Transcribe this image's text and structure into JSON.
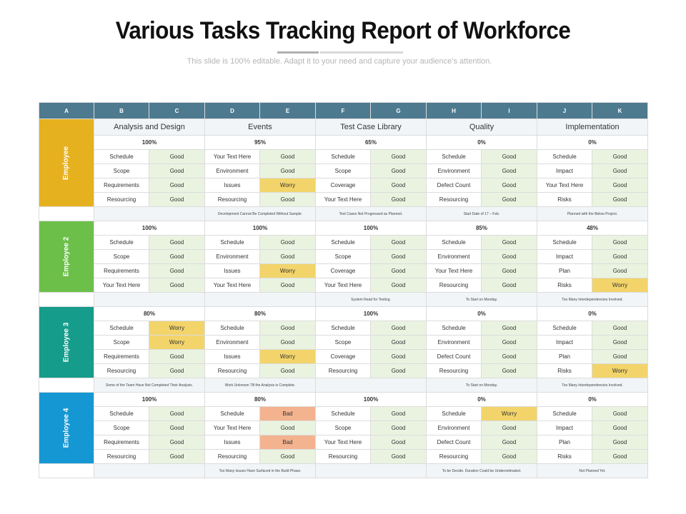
{
  "header": {
    "title": "Various Tasks Tracking Report of Workforce",
    "subtitle": "This slide is 100% editable. Adapt it to your need and capture your audience’s attention."
  },
  "colors": {
    "header_bg": "#4d7a8f",
    "good_bg": "#eaf3e0",
    "worry_bg": "#f2d46a",
    "bad_bg": "#f4b38f",
    "employee_colors": [
      "#e6b11f",
      "#6cc04a",
      "#169c8a",
      "#1597d4"
    ]
  },
  "columns": [
    "A",
    "B",
    "C",
    "D",
    "E",
    "F",
    "G",
    "H",
    "I",
    "J",
    "K"
  ],
  "categories": [
    "Analysis and Design",
    "Events",
    "Test Case Library",
    "Quality",
    "Implementation"
  ],
  "employees": [
    {
      "name": "Employee",
      "percents": [
        "100%",
        "95%",
        "65%",
        "0%",
        "0%"
      ],
      "rows": [
        [
          [
            "Schedule",
            "Good"
          ],
          [
            "Your Text Here",
            "Good"
          ],
          [
            "Schedule",
            "Good"
          ],
          [
            "Schedule",
            "Good"
          ],
          [
            "Schedule",
            "Good"
          ]
        ],
        [
          [
            "Scope",
            "Good"
          ],
          [
            "Environment",
            "Good"
          ],
          [
            "Scope",
            "Good"
          ],
          [
            "Environment",
            "Good"
          ],
          [
            "Impact",
            "Good"
          ]
        ],
        [
          [
            "Requirements",
            "Good"
          ],
          [
            "Issues",
            "Worry"
          ],
          [
            "Coverage",
            "Good"
          ],
          [
            "Defect Count",
            "Good"
          ],
          [
            "Your Text Here",
            "Good"
          ]
        ],
        [
          [
            "Resourcing",
            "Good"
          ],
          [
            "Resourcing",
            "Good"
          ],
          [
            "Your Text Here",
            "Good"
          ],
          [
            "Resourcing",
            "Good"
          ],
          [
            "Risks",
            "Good"
          ]
        ]
      ],
      "notes": [
        "",
        "Development Cannot Be Completed Without Sample.",
        "Test Cases Not Progressed as Planned.",
        "Start Date of 17 – Feb.",
        "Planned with the Below Project."
      ]
    },
    {
      "name": "Employee 2",
      "percents": [
        "100%",
        "100%",
        "100%",
        "85%",
        "48%"
      ],
      "rows": [
        [
          [
            "Schedule",
            "Good"
          ],
          [
            "Schedule",
            "Good"
          ],
          [
            "Schedule",
            "Good"
          ],
          [
            "Schedule",
            "Good"
          ],
          [
            "Schedule",
            "Good"
          ]
        ],
        [
          [
            "Scope",
            "Good"
          ],
          [
            "Environment",
            "Good"
          ],
          [
            "Scope",
            "Good"
          ],
          [
            "Environment",
            "Good"
          ],
          [
            "Impact",
            "Good"
          ]
        ],
        [
          [
            "Requirements",
            "Good"
          ],
          [
            "Issues",
            "Worry"
          ],
          [
            "Coverage",
            "Good"
          ],
          [
            "Your Text Here",
            "Good"
          ],
          [
            "Plan",
            "Good"
          ]
        ],
        [
          [
            "Your Text Here",
            "Good"
          ],
          [
            "Your Text Here",
            "Good"
          ],
          [
            "Your Text Here",
            "Good"
          ],
          [
            "Resourcing",
            "Good"
          ],
          [
            "Risks",
            "Worry"
          ]
        ]
      ],
      "notes": [
        "",
        "",
        "System Read for Testing.",
        "To Start on Monday.",
        "Too Many Interdependencies Involved."
      ]
    },
    {
      "name": "Employee 3",
      "percents": [
        "80%",
        "80%",
        "100%",
        "0%",
        "0%"
      ],
      "rows": [
        [
          [
            "Schedule",
            "Worry"
          ],
          [
            "Schedule",
            "Good"
          ],
          [
            "Schedule",
            "Good"
          ],
          [
            "Schedule",
            "Good"
          ],
          [
            "Schedule",
            "Good"
          ]
        ],
        [
          [
            "Scope",
            "Worry"
          ],
          [
            "Environment",
            "Good"
          ],
          [
            "Scope",
            "Good"
          ],
          [
            "Environment",
            "Good"
          ],
          [
            "Impact",
            "Good"
          ]
        ],
        [
          [
            "Requirements",
            "Good"
          ],
          [
            "Issues",
            "Worry"
          ],
          [
            "Coverage",
            "Good"
          ],
          [
            "Defect Count",
            "Good"
          ],
          [
            "Plan",
            "Good"
          ]
        ],
        [
          [
            "Resourcing",
            "Good"
          ],
          [
            "Resourcing",
            "Good"
          ],
          [
            "Resourcing",
            "Good"
          ],
          [
            "Resourcing",
            "Good"
          ],
          [
            "Risks",
            "Worry"
          ]
        ]
      ],
      "notes": [
        "Some of the Team Have Not Completed Their Analysis.",
        "Work Unknown Till the Analysis is Complete.",
        "",
        "To Start on Monday.",
        "Too Many Interdependencies Involved."
      ]
    },
    {
      "name": "Employee 4",
      "percents": [
        "100%",
        "80%",
        "100%",
        "0%",
        "0%"
      ],
      "rows": [
        [
          [
            "Schedule",
            "Good"
          ],
          [
            "Schedule",
            "Bad"
          ],
          [
            "Schedule",
            "Good"
          ],
          [
            "Schedule",
            "Worry"
          ],
          [
            "Schedule",
            "Good"
          ]
        ],
        [
          [
            "Scope",
            "Good"
          ],
          [
            "Your Text Here",
            "Good"
          ],
          [
            "Scope",
            "Good"
          ],
          [
            "Environment",
            "Good"
          ],
          [
            "Impact",
            "Good"
          ]
        ],
        [
          [
            "Requirements",
            "Good"
          ],
          [
            "Issues",
            "Bad"
          ],
          [
            "Your Text Here",
            "Good"
          ],
          [
            "Defect Count",
            "Good"
          ],
          [
            "Plan",
            "Good"
          ]
        ],
        [
          [
            "Resourcing",
            "Good"
          ],
          [
            "Resourcing",
            "Good"
          ],
          [
            "Resourcing",
            "Good"
          ],
          [
            "Resourcing",
            "Good"
          ],
          [
            "Risks",
            "Good"
          ]
        ]
      ],
      "notes": [
        "",
        "Too Many Issues Have Surfaced in the Build Phase.",
        "",
        "To be Decide. Duration Could be Underestimated.",
        "Not Planned Yet."
      ]
    }
  ]
}
